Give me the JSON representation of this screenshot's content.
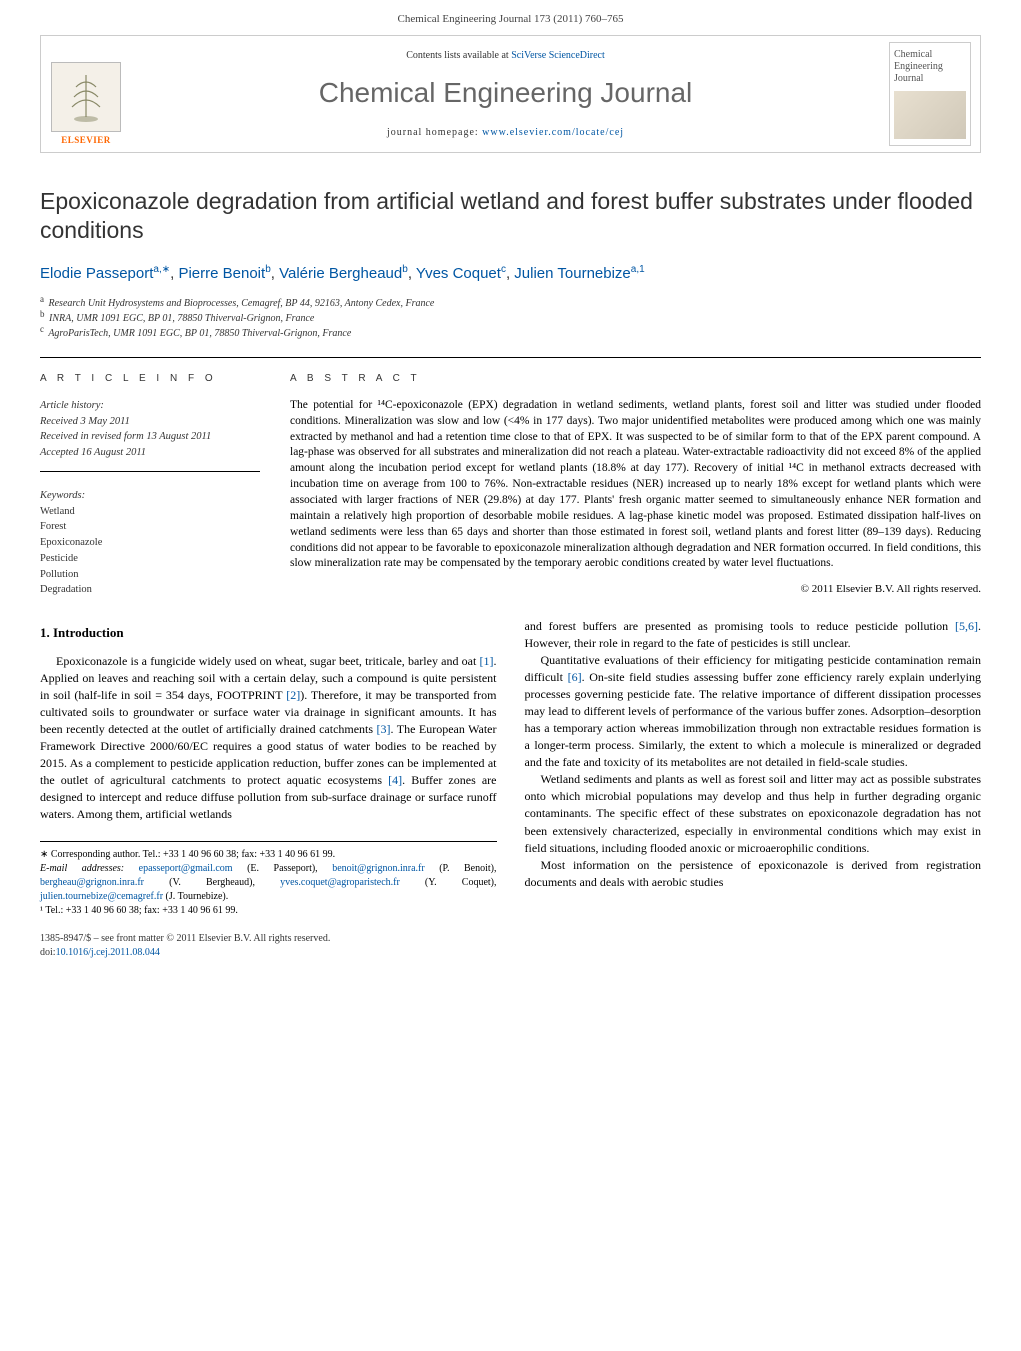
{
  "header": {
    "citation": "Chemical Engineering Journal 173 (2011) 760–765"
  },
  "banner": {
    "contents_prefix": "Contents lists available at ",
    "contents_link": "SciVerse ScienceDirect",
    "journal_name": "Chemical Engineering Journal",
    "homepage_prefix": "journal homepage: ",
    "homepage_link": "www.elsevier.com/locate/cej",
    "publisher_word": "ELSEVIER",
    "cover_title": "Chemical Engineering Journal"
  },
  "article": {
    "title": "Epoxiconazole degradation from artificial wetland and forest buffer substrates under flooded conditions",
    "authors_html": "Elodie Passeport<sup>a,∗</sup>, Pierre Benoit<sup>b</sup>, Valérie Bergheaud<sup>b</sup>, Yves Coquet<sup>c</sup>, Julien Tournebize<sup>a,1</sup>",
    "affiliations": [
      {
        "sup": "a",
        "text": "Research Unit Hydrosystems and Bioprocesses, Cemagref, BP 44, 92163, Antony Cedex, France"
      },
      {
        "sup": "b",
        "text": "INRA, UMR 1091 EGC, BP 01, 78850 Thiverval-Grignon, France"
      },
      {
        "sup": "c",
        "text": "AgroParisTech, UMR 1091 EGC, BP 01, 78850 Thiverval-Grignon, France"
      }
    ]
  },
  "article_info": {
    "section_label": "a r t i c l e   i n f o",
    "history_label": "Article history:",
    "history": [
      "Received 3 May 2011",
      "Received in revised form 13 August 2011",
      "Accepted 16 August 2011"
    ],
    "keywords_label": "Keywords:",
    "keywords": [
      "Wetland",
      "Forest",
      "Epoxiconazole",
      "Pesticide",
      "Pollution",
      "Degradation"
    ]
  },
  "abstract": {
    "section_label": "a b s t r a c t",
    "text": "The potential for ¹⁴C-epoxiconazole (EPX) degradation in wetland sediments, wetland plants, forest soil and litter was studied under flooded conditions. Mineralization was slow and low (<4% in 177 days). Two major unidentified metabolites were produced among which one was mainly extracted by methanol and had a retention time close to that of EPX. It was suspected to be of similar form to that of the EPX parent compound. A lag-phase was observed for all substrates and mineralization did not reach a plateau. Water-extractable radioactivity did not exceed 8% of the applied amount along the incubation period except for wetland plants (18.8% at day 177). Recovery of initial ¹⁴C in methanol extracts decreased with incubation time on average from 100 to 76%. Non-extractable residues (NER) increased up to nearly 18% except for wetland plants which were associated with larger fractions of NER (29.8%) at day 177. Plants' fresh organic matter seemed to simultaneously enhance NER formation and maintain a relatively high proportion of desorbable mobile residues. A lag-phase kinetic model was proposed. Estimated dissipation half-lives on wetland sediments were less than 65 days and shorter than those estimated in forest soil, wetland plants and forest litter (89–139 days). Reducing conditions did not appear to be favorable to epoxiconazole mineralization although degradation and NER formation occurred. In field conditions, this slow mineralization rate may be compensated by the temporary aerobic conditions created by water level fluctuations.",
    "copyright": "© 2011 Elsevier B.V. All rights reserved."
  },
  "body": {
    "section_heading": "1. Introduction",
    "col1_p1": "Epoxiconazole is a fungicide widely used on wheat, sugar beet, triticale, barley and oat [1]. Applied on leaves and reaching soil with a certain delay, such a compound is quite persistent in soil (half-life in soil = 354 days, FOOTPRINT [2]). Therefore, it may be transported from cultivated soils to groundwater or surface water via drainage in significant amounts. It has been recently detected at the outlet of artificially drained catchments [3]. The European Water Framework Directive 2000/60/EC requires a good status of water bodies to be reached by 2015. As a complement to pesticide application reduction, buffer zones can be implemented at the outlet of agricultural catchments to protect aquatic ecosystems [4]. Buffer zones are designed to intercept and reduce diffuse pollution from sub-surface drainage or surface runoff waters. Among them, artificial wetlands",
    "col2_p1": "and forest buffers are presented as promising tools to reduce pesticide pollution [5,6]. However, their role in regard to the fate of pesticides is still unclear.",
    "col2_p2": "Quantitative evaluations of their efficiency for mitigating pesticide contamination remain difficult [6]. On-site field studies assessing buffer zone efficiency rarely explain underlying processes governing pesticide fate. The relative importance of different dissipation processes may lead to different levels of performance of the various buffer zones. Adsorption–desorption has a temporary action whereas immobilization through non extractable residues formation is a longer-term process. Similarly, the extent to which a molecule is mineralized or degraded and the fate and toxicity of its metabolites are not detailed in field-scale studies.",
    "col2_p3": "Wetland sediments and plants as well as forest soil and litter may act as possible substrates onto which microbial populations may develop and thus help in further degrading organic contaminants. The specific effect of these substrates on epoxiconazole degradation has not been extensively characterized, especially in environmental conditions which may exist in field situations, including flooded anoxic or microaerophilic conditions.",
    "col2_p4": "Most information on the persistence of epoxiconazole is derived from registration documents and deals with aerobic studies"
  },
  "footnotes": {
    "corr": "∗ Corresponding author. Tel.: +33 1 40 96 60 38; fax: +33 1 40 96 61 99.",
    "emails_label": "E-mail addresses:",
    "emails": " epasseport@gmail.com (E. Passeport), benoit@grignon.inra.fr (P. Benoit), bergheau@grignon.inra.fr (V. Bergheaud), yves.coquet@agroparistech.fr (Y. Coquet), julien.tournebize@cemagref.fr (J. Tournebize).",
    "fn1": "¹ Tel.: +33 1 40 96 60 38; fax: +33 1 40 96 61 99."
  },
  "footer": {
    "line1": "1385-8947/$ – see front matter © 2011 Elsevier B.V. All rights reserved.",
    "doi_prefix": "doi:",
    "doi": "10.1016/j.cej.2011.08.044"
  },
  "links": {
    "refs": [
      "[1]",
      "[2]",
      "[3]",
      "[4]",
      "[5,6]",
      "[6]"
    ]
  },
  "colors": {
    "link": "#0056a3",
    "text": "#000000",
    "muted": "#666666",
    "orange": "#ff6600",
    "border": "#cccccc"
  },
  "typography": {
    "title_fontsize": 23,
    "body_fontsize": 12,
    "abstract_fontsize": 11.5,
    "affiliation_fontsize": 10,
    "journal_name_fontsize": 28
  }
}
